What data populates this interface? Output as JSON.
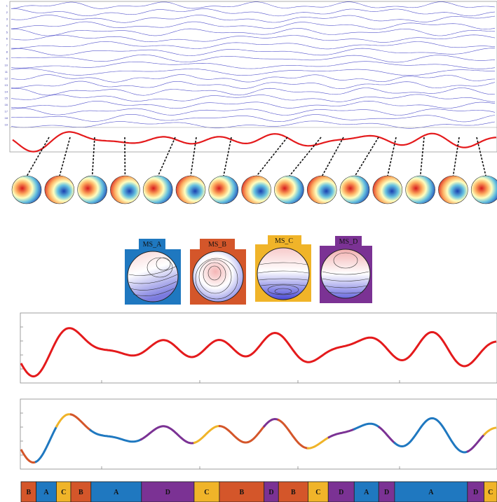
{
  "eeg": {
    "channel_labels": [
      "1",
      "2",
      "3",
      "4",
      "5",
      "6",
      "7",
      "8",
      "9",
      "10",
      "11",
      "12",
      "13",
      "14",
      "15",
      "16",
      "17",
      "18",
      "19"
    ],
    "trace_color": "#5555cc"
  },
  "gfp": {
    "line_color": "#e41a1c",
    "peak_count": 15
  },
  "templates": [
    {
      "label": "MS_A",
      "color": "#1f78c0"
    },
    {
      "label": "MS_B",
      "color": "#d4562a"
    },
    {
      "label": "MS_C",
      "color": "#f0b429"
    },
    {
      "label": "MS_D",
      "color": "#7b3294"
    }
  ],
  "state_colors": {
    "A": "#1f78c0",
    "B": "#d4562a",
    "C": "#f0b429",
    "D": "#7b3294"
  },
  "sequence": [
    {
      "label": "B",
      "state": "B"
    },
    {
      "label": "A",
      "state": "A"
    },
    {
      "label": "C",
      "state": "C"
    },
    {
      "label": "B",
      "state": "B"
    },
    {
      "label": "A",
      "state": "A"
    },
    {
      "label": "D",
      "state": "D"
    },
    {
      "label": "C",
      "state": "C"
    },
    {
      "label": "B",
      "state": "B"
    },
    {
      "label": "D",
      "state": "D"
    },
    {
      "label": "B",
      "state": "B"
    },
    {
      "label": "C",
      "state": "C"
    },
    {
      "label": "D",
      "state": "D"
    },
    {
      "label": "A",
      "state": "A"
    },
    {
      "label": "D",
      "state": "D"
    },
    {
      "label": "A",
      "state": "A"
    },
    {
      "label": "D",
      "state": "D"
    },
    {
      "label": "C",
      "state": "C"
    }
  ]
}
